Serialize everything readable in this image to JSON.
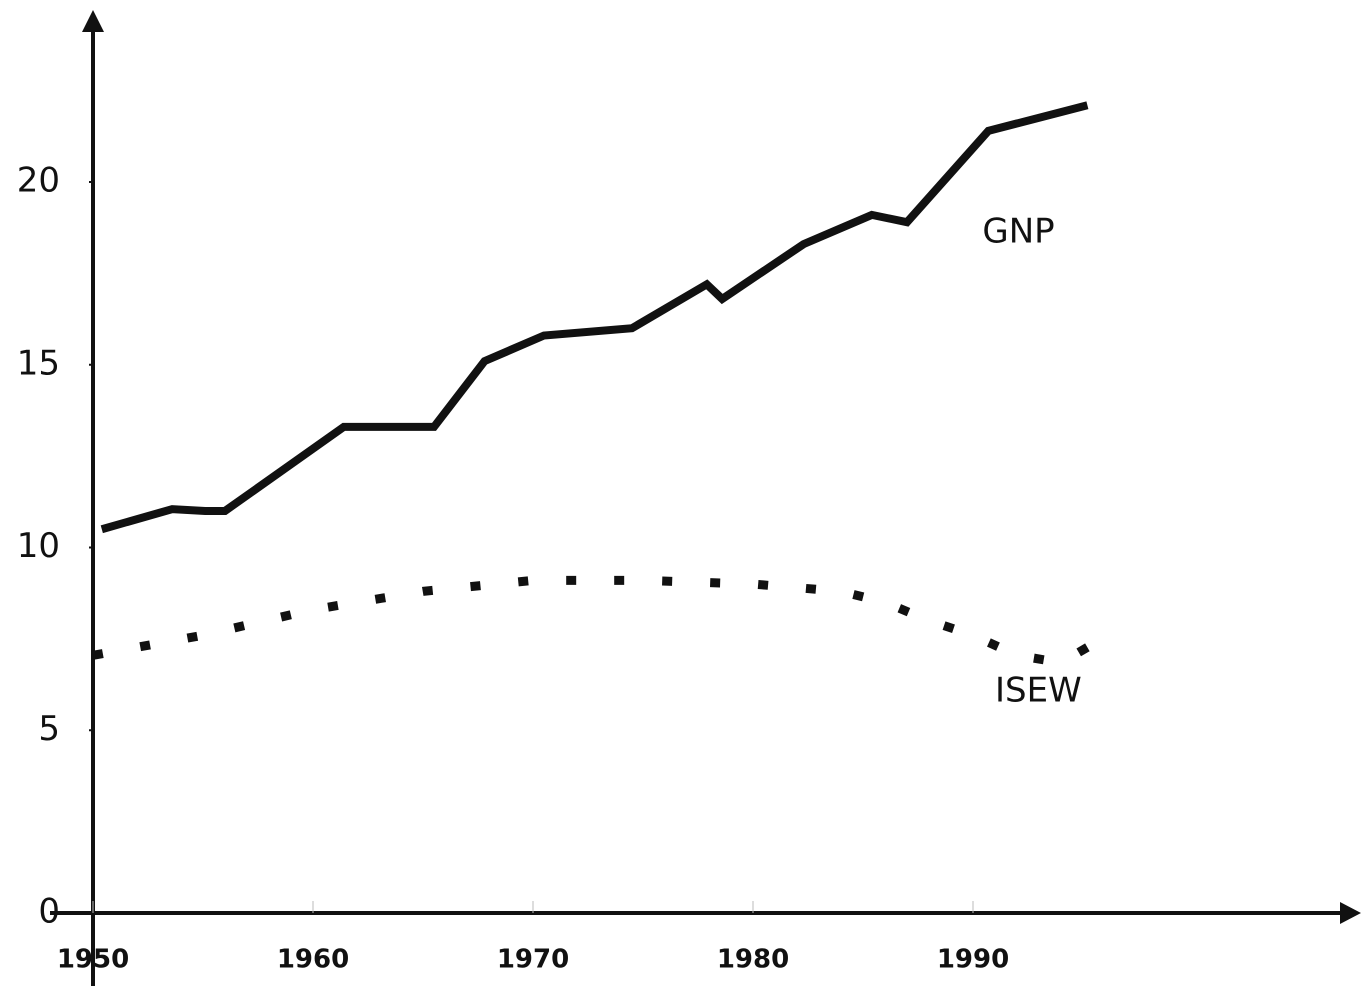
{
  "chart_data": {
    "type": "line",
    "series": [
      {
        "name": "GNP",
        "color": "#111111",
        "style": "solid",
        "x": [
          1950.4,
          1953.6,
          1955.1,
          1956.0,
          1961.4,
          1965.5,
          1967.8,
          1970.5,
          1974.5,
          1977.9,
          1978.6,
          1982.3,
          1985.4,
          1987.0,
          1990.7,
          1995.2
        ],
        "values": [
          10.5,
          11.05,
          11.0,
          11.0,
          13.3,
          13.3,
          15.1,
          15.8,
          16.0,
          17.2,
          16.8,
          18.3,
          19.1,
          18.9,
          21.4,
          22.1
        ]
      },
      {
        "name": "ISEW",
        "color": "#111111",
        "style": "dotted",
        "x": [
          1950,
          1955,
          1960,
          1965,
          1970,
          1975,
          1980,
          1984,
          1986,
          1988,
          1990,
          1992,
          1994,
          1996
        ],
        "values": [
          7.05,
          7.6,
          8.3,
          8.8,
          9.1,
          9.1,
          9.0,
          8.8,
          8.5,
          8.0,
          7.6,
          7.05,
          6.85,
          7.55
        ]
      }
    ],
    "xlim": [
      1950,
      2007
    ],
    "xticks": [
      1950,
      1960,
      1970,
      1980,
      1990
    ],
    "ylim": [
      0,
      24.5
    ],
    "yticks": [
      0,
      5,
      10,
      15,
      20
    ]
  }
}
